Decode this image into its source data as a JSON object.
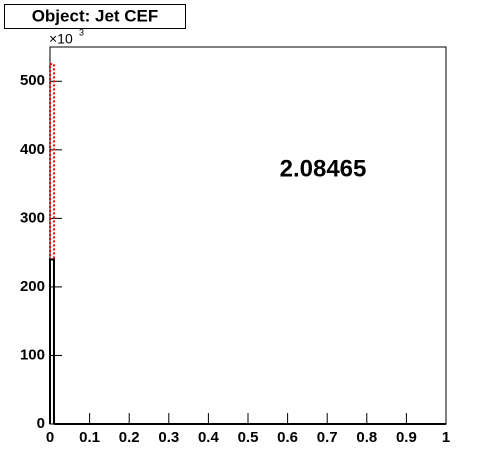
{
  "chart_data": {
    "type": "histogram",
    "title": "Object: Jet CEF",
    "multiplier": "×10",
    "multiplier_exp": "3",
    "annotation": "2.08465",
    "bins": [
      0,
      0.01,
      1
    ],
    "series": [
      {
        "color": "#ff0000",
        "dash": "dotted",
        "values": [
          525,
          0
        ]
      },
      {
        "color": "#000000",
        "values": [
          240,
          0
        ]
      }
    ],
    "xlim": [
      0,
      1
    ],
    "xticks": [
      0,
      0.1,
      0.2,
      0.3,
      0.4,
      0.5,
      0.6,
      0.7,
      0.8,
      0.9,
      1
    ],
    "ylim": [
      0,
      550
    ],
    "yticks": [
      0,
      100,
      200,
      300,
      400,
      500
    ]
  }
}
